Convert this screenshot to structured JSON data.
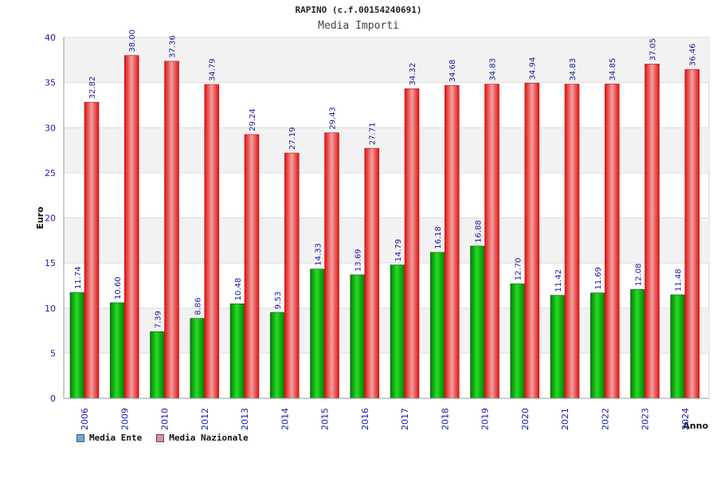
{
  "chart_data": {
    "type": "bar",
    "title": "RAPINO (c.f.00154240691)",
    "subtitle": "Media Importi",
    "xlabel": "Anno",
    "ylabel": "Euro",
    "ylim": [
      0,
      40
    ],
    "yticks": [
      "0",
      "5",
      "10",
      "15",
      "20",
      "25",
      "30",
      "35",
      "40"
    ],
    "categories": [
      "2006",
      "2009",
      "2010",
      "2012",
      "2013",
      "2014",
      "2015",
      "2016",
      "2017",
      "2018",
      "2019",
      "2020",
      "2021",
      "2022",
      "2023",
      "2024"
    ],
    "series": [
      {
        "name": "Media Ente",
        "color": "#22bb22",
        "values": [
          11.74,
          10.6,
          7.39,
          8.86,
          10.48,
          9.53,
          14.33,
          13.69,
          14.79,
          16.18,
          16.88,
          12.7,
          11.42,
          11.69,
          12.08,
          11.48
        ],
        "labels": [
          "11.74",
          "10.60",
          "7.39",
          "8.86",
          "10.48",
          "9.53",
          "14.33",
          "13.69",
          "14.79",
          "16.18",
          "16.88",
          "12.70",
          "11.42",
          "11.69",
          "12.08",
          "11.48"
        ]
      },
      {
        "name": "Media Nazionale",
        "color": "#ee2222",
        "values": [
          32.82,
          38.0,
          37.36,
          34.79,
          29.24,
          27.19,
          29.43,
          27.71,
          34.32,
          34.68,
          34.83,
          34.94,
          34.83,
          34.85,
          37.05,
          36.46
        ],
        "labels": [
          "32.82",
          "38.00",
          "37.36",
          "34.79",
          "29.24",
          "27.19",
          "29.43",
          "27.71",
          "34.32",
          "34.68",
          "34.83",
          "34.94",
          "34.83",
          "34.85",
          "37.05",
          "36.46"
        ]
      }
    ],
    "legend": [
      {
        "label": "Media Ente",
        "color": "#66aaee"
      },
      {
        "label": "Media Nazionale",
        "color": "#ee88aa"
      }
    ],
    "grid": true,
    "legend_position": "bottom-left"
  }
}
